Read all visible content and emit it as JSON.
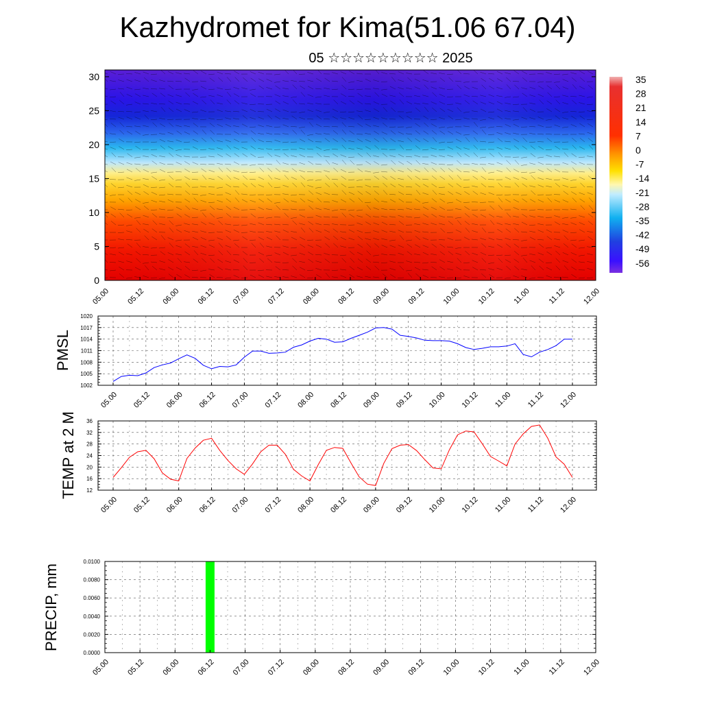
{
  "header": {
    "title": "Kazhydromet for Kima(51.06 67.04)",
    "subtitle": "05 ☆☆☆☆☆☆☆☆☆ 2025"
  },
  "chart_data": [
    {
      "type": "heatmap",
      "ylim": [
        0,
        31
      ],
      "yticks": [
        0,
        5,
        10,
        15,
        20,
        25,
        30
      ],
      "xticks": [
        "05.00",
        "05.12",
        "06.00",
        "06.12",
        "07.00",
        "07.12",
        "08.00",
        "08.12",
        "09.00",
        "09.12",
        "10.00",
        "10.12",
        "11.00",
        "11.12",
        "12.00"
      ],
      "colorbar_labels": [
        "35",
        "28",
        "21",
        "14",
        "7",
        "0",
        "-7",
        "-14",
        "-21",
        "-28",
        "-35",
        "-42",
        "-49",
        "-56"
      ],
      "overlay": "wind barbs"
    },
    {
      "type": "line",
      "ylabel": "PMSL",
      "ylim": [
        1002,
        1020
      ],
      "yticks": [
        1002,
        1005,
        1008,
        1011,
        1014,
        1017,
        1020
      ],
      "xticks": [
        "05.00",
        "05.12",
        "06.00",
        "06.12",
        "07.00",
        "07.12",
        "08.00",
        "08.12",
        "09.00",
        "09.12",
        "10.00",
        "10.12",
        "11.00",
        "11.12",
        "12.00"
      ],
      "series": [
        {
          "color": "#0000ff",
          "x": [
            0,
            3,
            6,
            9,
            12,
            15,
            18,
            21,
            24,
            27,
            30,
            33,
            36,
            39,
            42,
            45,
            48,
            51,
            54,
            57,
            60,
            63,
            66,
            69,
            72,
            75,
            78,
            81,
            84,
            87,
            90,
            93,
            96,
            99,
            102,
            105,
            108,
            111,
            114,
            117,
            120,
            123,
            126,
            129,
            132,
            135,
            138,
            141,
            144,
            147,
            150,
            153,
            156,
            159,
            162,
            165,
            168
          ],
          "values": [
            1003.0,
            1004.3,
            1004.6,
            1004.5,
            1005.2,
            1006.6,
            1007.3,
            1007.8,
            1008.9,
            1009.9,
            1009.0,
            1007.2,
            1006.3,
            1006.9,
            1006.8,
            1007.3,
            1009.3,
            1010.9,
            1010.9,
            1010.3,
            1010.4,
            1010.6,
            1011.9,
            1012.5,
            1013.5,
            1014.2,
            1014.0,
            1013.2,
            1013.3,
            1014.2,
            1015.0,
            1015.8,
            1016.9,
            1017.0,
            1016.6,
            1015.0,
            1014.7,
            1014.3,
            1013.7,
            1013.6,
            1013.6,
            1013.5,
            1012.8,
            1011.8,
            1011.3,
            1011.6,
            1012.0,
            1012.0,
            1012.2,
            1012.8,
            1010.0,
            1009.4,
            1010.6,
            1011.3,
            1012.3,
            1014.0,
            1014.0
          ]
        }
      ]
    },
    {
      "type": "line",
      "ylabel": "TEMP at 2 M",
      "ylim": [
        12,
        36
      ],
      "yticks": [
        12,
        16,
        20,
        24,
        28,
        32,
        36
      ],
      "xticks": [
        "05.00",
        "05.12",
        "06.00",
        "06.12",
        "07.00",
        "07.12",
        "08.00",
        "08.12",
        "09.00",
        "09.12",
        "10.00",
        "10.12",
        "11.00",
        "11.12",
        "12.00"
      ],
      "series": [
        {
          "color": "#ff0000",
          "x": [
            0,
            3,
            6,
            9,
            12,
            15,
            18,
            21,
            24,
            27,
            30,
            33,
            36,
            39,
            42,
            45,
            48,
            51,
            54,
            57,
            60,
            63,
            66,
            69,
            72,
            75,
            78,
            81,
            84,
            87,
            90,
            93,
            96,
            99,
            102,
            105,
            108,
            111,
            114,
            117,
            120,
            123,
            126,
            129,
            132,
            135,
            138,
            141,
            144,
            147,
            150,
            153,
            156,
            159,
            162,
            165,
            168
          ],
          "values": [
            16.4,
            19.8,
            23.4,
            25.3,
            25.8,
            22.9,
            18.0,
            15.8,
            15.2,
            23.0,
            26.6,
            29.3,
            30.0,
            25.8,
            22.3,
            19.4,
            17.5,
            21.1,
            25.3,
            27.6,
            27.6,
            24.4,
            19.2,
            16.9,
            15.2,
            20.8,
            25.8,
            26.8,
            26.5,
            21.4,
            16.6,
            14.1,
            13.6,
            21.3,
            26.4,
            27.6,
            27.8,
            25.7,
            22.6,
            19.7,
            19.4,
            26.0,
            31.2,
            32.5,
            32.2,
            28.1,
            23.7,
            22.1,
            20.4,
            28.0,
            31.5,
            34.1,
            34.6,
            30.0,
            23.5,
            21.0,
            16.4
          ]
        }
      ]
    },
    {
      "type": "bar",
      "ylabel": "PRECIP, mm",
      "ylim": [
        0,
        0.01
      ],
      "yticks": [
        "0.0000",
        "0.0020",
        "0.0040",
        "0.0060",
        "0.0080",
        "0.0100"
      ],
      "xticks": [
        "05.00",
        "05.12",
        "06.00",
        "06.12",
        "07.00",
        "07.12",
        "08.00",
        "08.12",
        "09.00",
        "09.12",
        "10.00",
        "10.12",
        "11.00",
        "11.12",
        "12.00"
      ],
      "series": [
        {
          "color": "#00ff00",
          "x": [
            36
          ],
          "values": [
            0.01
          ]
        }
      ]
    }
  ]
}
